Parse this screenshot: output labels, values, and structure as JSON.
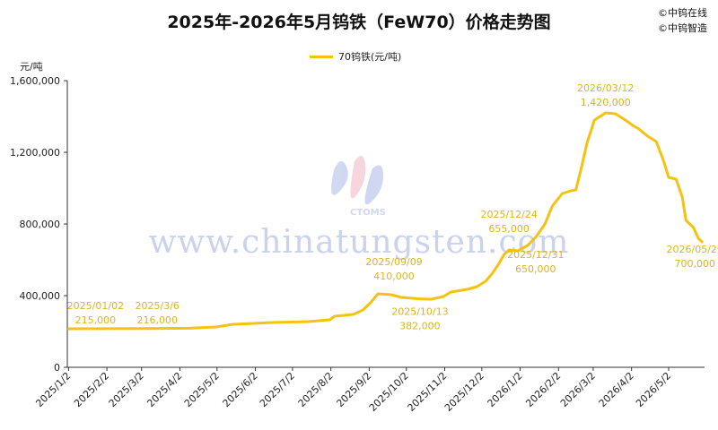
{
  "header": {
    "title": "2025年-2026年5月钨铁（FeW70）价格走势图",
    "copyright": [
      "©中钨在线",
      "©中钨智造"
    ]
  },
  "watermark": {
    "url": "www.chinatungsten.com",
    "logo_text": "CTOMS"
  },
  "colors": {
    "series": "#F5C211",
    "annotation": "#E0B31E",
    "axis": "#333333",
    "watermark": "#C9D2EE"
  },
  "chart_data": {
    "type": "line",
    "title": "2025年-2026年5月钨铁（FeW70）价格走势图",
    "ylabel": "元/吨",
    "xlabel": "",
    "ylim": [
      0,
      1600000
    ],
    "yticks": [
      0,
      400000,
      800000,
      1200000,
      1600000
    ],
    "ytick_labels": [
      "0",
      "400,000",
      "800,000",
      "1,200,000",
      "1,600,000"
    ],
    "xlim": [
      "2025-01-01",
      "2026-05-31"
    ],
    "xticks": [
      "2025-01-02",
      "2025-02-02",
      "2025-03-02",
      "2025-04-02",
      "2025-05-02",
      "2025-06-02",
      "2025-07-02",
      "2025-08-02",
      "2025-09-02",
      "2025-10-02",
      "2025-11-02",
      "2025-12-02",
      "2026-01-02",
      "2026-02-02",
      "2026-03-02",
      "2026-04-02",
      "2026-05-02"
    ],
    "xtick_labels": [
      "2025/1/2",
      "2025/2/2",
      "2025/3/2",
      "2025/4/2",
      "2025/5/2",
      "2025/6/2",
      "2025/7/2",
      "2025/8/2",
      "2025/9/2",
      "2025/10/2",
      "2025/11/2",
      "2025/12/2",
      "2026/1/2",
      "2026/2/2",
      "2026/3/2",
      "2026/4/2",
      "2026/5/2"
    ],
    "grid": false,
    "legend_position": "top-center",
    "series": [
      {
        "name": "70钨铁(元/吨)",
        "points": [
          [
            "2025-01-02",
            215000
          ],
          [
            "2025-03-06",
            216000
          ],
          [
            "2025-04-10",
            218000
          ],
          [
            "2025-05-01",
            225000
          ],
          [
            "2025-05-15",
            240000
          ],
          [
            "2025-06-01",
            245000
          ],
          [
            "2025-06-15",
            250000
          ],
          [
            "2025-07-15",
            255000
          ],
          [
            "2025-08-01",
            265000
          ],
          [
            "2025-08-05",
            285000
          ],
          [
            "2025-08-20",
            295000
          ],
          [
            "2025-08-28",
            320000
          ],
          [
            "2025-09-03",
            360000
          ],
          [
            "2025-09-09",
            410000
          ],
          [
            "2025-09-20",
            405000
          ],
          [
            "2025-09-28",
            390000
          ],
          [
            "2025-10-13",
            382000
          ],
          [
            "2025-10-22",
            380000
          ],
          [
            "2025-11-01",
            395000
          ],
          [
            "2025-11-07",
            420000
          ],
          [
            "2025-11-20",
            435000
          ],
          [
            "2025-11-28",
            450000
          ],
          [
            "2025-12-05",
            480000
          ],
          [
            "2025-12-10",
            520000
          ],
          [
            "2025-12-15",
            570000
          ],
          [
            "2025-12-20",
            630000
          ],
          [
            "2025-12-24",
            655000
          ],
          [
            "2025-12-31",
            650000
          ],
          [
            "2026-01-08",
            680000
          ],
          [
            "2026-01-15",
            730000
          ],
          [
            "2026-01-22",
            800000
          ],
          [
            "2026-01-28",
            900000
          ],
          [
            "2026-02-05",
            970000
          ],
          [
            "2026-02-12",
            985000
          ],
          [
            "2026-02-16",
            990000
          ],
          [
            "2026-02-20",
            1100000
          ],
          [
            "2026-02-25",
            1250000
          ],
          [
            "2026-03-03",
            1380000
          ],
          [
            "2026-03-12",
            1420000
          ],
          [
            "2026-03-20",
            1415000
          ],
          [
            "2026-03-28",
            1380000
          ],
          [
            "2026-04-03",
            1350000
          ],
          [
            "2026-04-08",
            1330000
          ],
          [
            "2026-04-15",
            1290000
          ],
          [
            "2026-04-22",
            1260000
          ],
          [
            "2026-04-28",
            1150000
          ],
          [
            "2026-05-02",
            1060000
          ],
          [
            "2026-05-08",
            1050000
          ],
          [
            "2026-05-13",
            950000
          ],
          [
            "2026-05-16",
            820000
          ],
          [
            "2026-05-22",
            780000
          ],
          [
            "2026-05-26",
            720000
          ],
          [
            "2026-05-29",
            700000
          ]
        ]
      }
    ],
    "annotations": [
      {
        "date_label": "2025/01/02",
        "value_label": "215,000",
        "x": "2025-01-02",
        "y": 215000
      },
      {
        "date_label": "2025/3/6",
        "value_label": "216,000",
        "x": "2025-03-06",
        "y": 216000
      },
      {
        "date_label": "2025/09/09",
        "value_label": "410,000",
        "x": "2025-09-09",
        "y": 410000
      },
      {
        "date_label": "2025/10/13",
        "value_label": "382,000",
        "x": "2025-10-13",
        "y": 382000
      },
      {
        "date_label": "2025/12/24",
        "value_label": "655,000",
        "x": "2025-12-24",
        "y": 655000
      },
      {
        "date_label": "2025/12/31",
        "value_label": "650,000",
        "x": "2025-12-31",
        "y": 650000
      },
      {
        "date_label": "2026/03/12",
        "value_label": "1,420,000",
        "x": "2026-03-12",
        "y": 1420000
      },
      {
        "date_label": "2026/05/29",
        "value_label": "700,000",
        "x": "2026-05-29",
        "y": 700000
      }
    ]
  }
}
